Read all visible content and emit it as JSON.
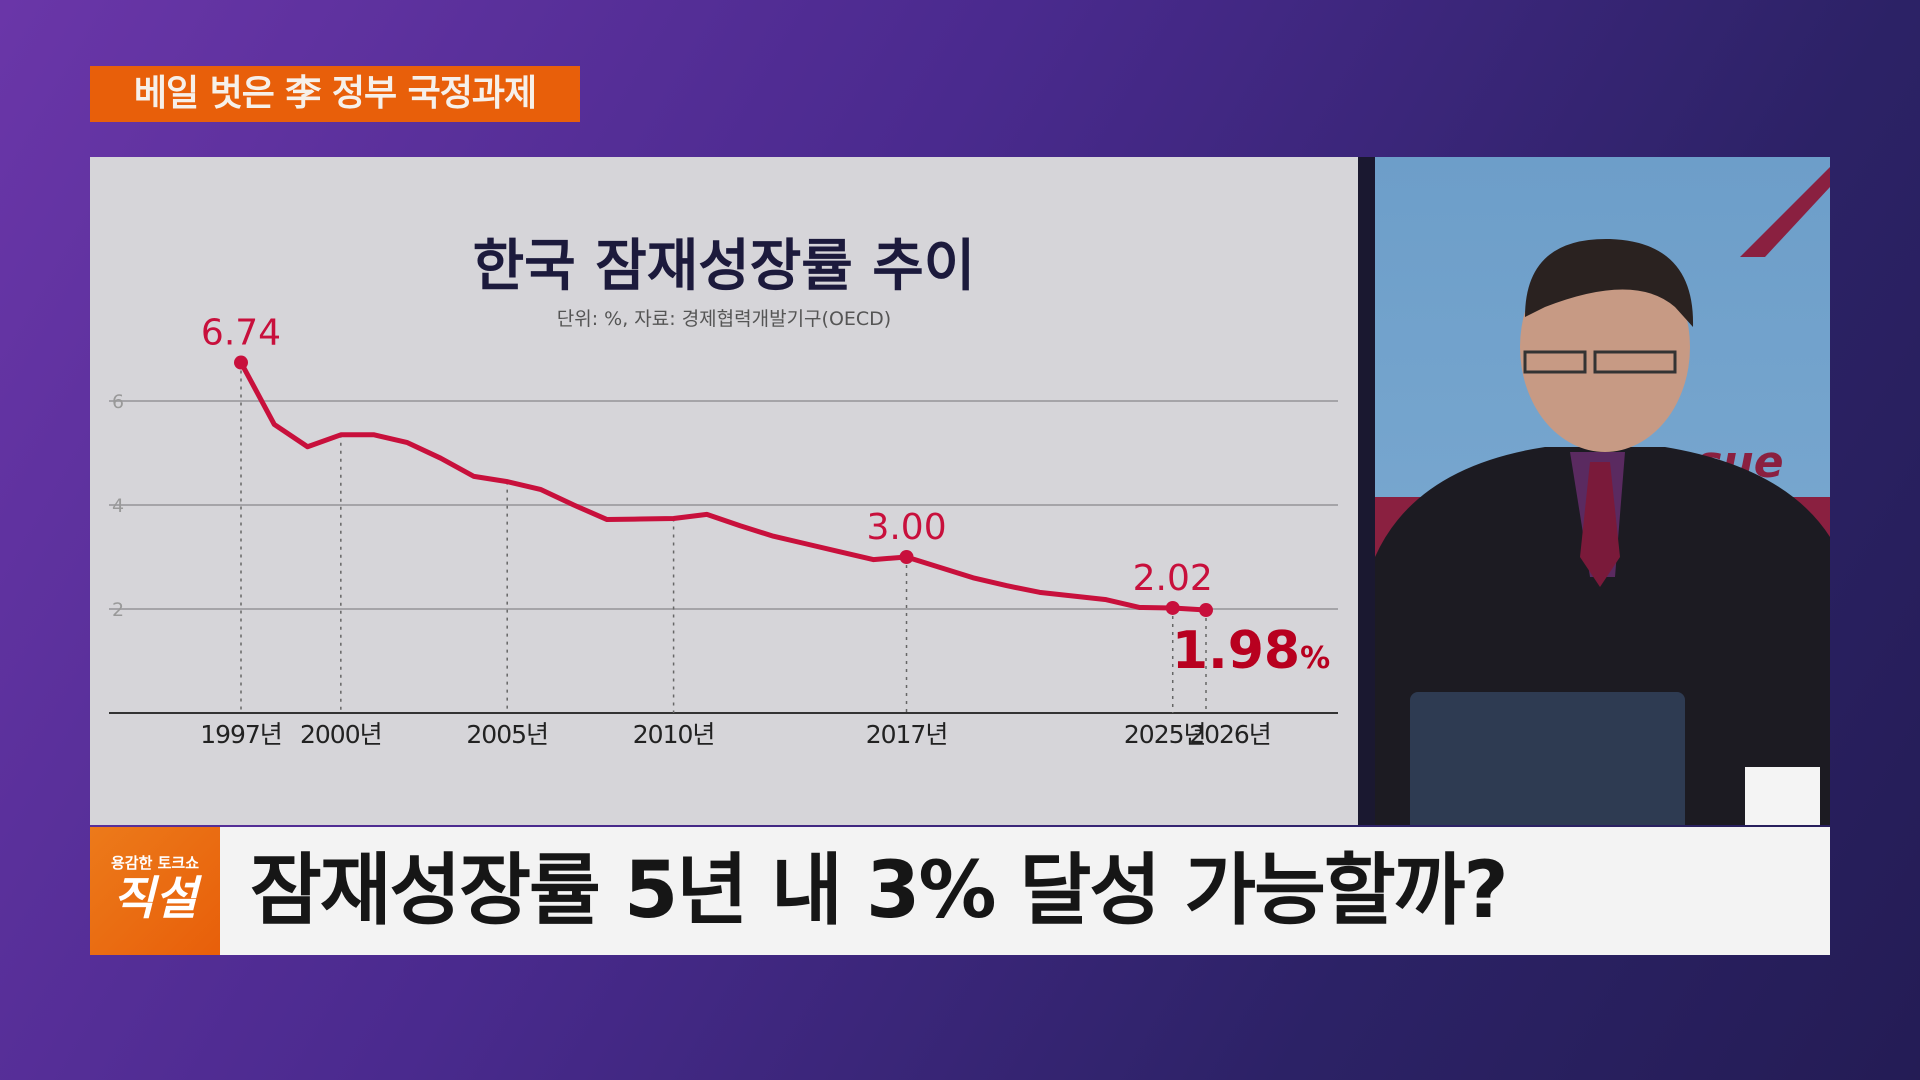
{
  "banner": "베일 벗은 李 정부 국정과제",
  "chart_data": {
    "type": "line",
    "title": "한국 잠재성장률 추이",
    "subtitle": "단위: %, 자료: 경제협력개발기구(OECD)",
    "x": [
      1997,
      1998,
      1999,
      2000,
      2001,
      2002,
      2003,
      2004,
      2005,
      2006,
      2007,
      2008,
      2009,
      2010,
      2011,
      2012,
      2013,
      2014,
      2015,
      2016,
      2017,
      2018,
      2019,
      2020,
      2021,
      2022,
      2023,
      2024,
      2025,
      2026
    ],
    "values": [
      6.74,
      5.55,
      5.12,
      5.35,
      5.35,
      5.2,
      4.9,
      4.55,
      4.45,
      4.3,
      4.0,
      3.72,
      3.73,
      3.74,
      3.82,
      3.6,
      3.4,
      3.25,
      3.1,
      2.95,
      3.0,
      2.8,
      2.6,
      2.45,
      2.32,
      2.25,
      2.18,
      2.03,
      2.02,
      1.98
    ],
    "yticks": [
      "2",
      "4",
      "6"
    ],
    "ylim": [
      0,
      7
    ],
    "xtick_labels": [
      {
        "year": 1997,
        "label": "1997년"
      },
      {
        "year": 2000,
        "label": "2000년"
      },
      {
        "year": 2005,
        "label": "2005년"
      },
      {
        "year": 2010,
        "label": "2010년"
      },
      {
        "year": 2017,
        "label": "2017년"
      },
      {
        "year": 2025,
        "label": "2025년"
      },
      {
        "year": 2026,
        "label": "2026년"
      }
    ],
    "annotations": [
      {
        "year": 1997,
        "label": "6.74"
      },
      {
        "year": 2017,
        "label": "3.00"
      },
      {
        "year": 2025,
        "label": "2.02"
      },
      {
        "year": 2026,
        "label": "1.98",
        "unit": "%"
      }
    ],
    "line_color": "#c8103c",
    "grid": true
  },
  "video": {
    "backdrop_text": "ssue"
  },
  "bottom": {
    "logo_small": "용감한 토크쇼",
    "logo_big": "직설",
    "caption": "잠재성장률 5년 내 3% 달성 가능할까?"
  }
}
